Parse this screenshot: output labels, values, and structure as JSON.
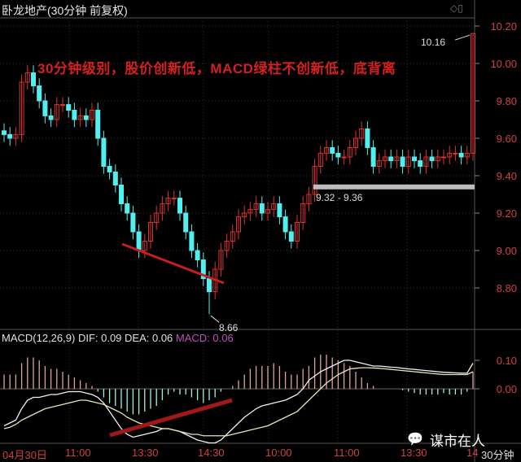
{
  "header": {
    "title": "卧龙地产(30分钟 前复权)",
    "window_buttons": "◇▯"
  },
  "annotation_text": "30分钟级别，股价创新低，MACD绿柱不创新低，底背离",
  "macd_label": {
    "params": "MACD(12,26,9)",
    "dif": "DIF: 0.09",
    "dea": "DEA: 0.06",
    "macd": "MACD: 0.06"
  },
  "watermark": "谋市在人",
  "period": "30分钟",
  "colors": {
    "up": "#e03030",
    "down": "#50f0f0",
    "annotation": "#d42020",
    "support_band": "#bdbdbd",
    "axis_text": "#d04040",
    "macd_value": "#c050c0"
  },
  "chart_data": [
    {
      "type": "candlestick",
      "price_ticks": [
        "10.20",
        "10.00",
        "9.80",
        "9.60",
        "9.40",
        "9.20",
        "9.00",
        "8.80"
      ],
      "ylim": [
        8.7,
        10.28
      ],
      "close": [
        9.62,
        9.6,
        9.62,
        9.9,
        9.95,
        9.88,
        9.8,
        9.72,
        9.7,
        9.78,
        9.78,
        9.75,
        9.7,
        9.72,
        9.7,
        9.75,
        9.6,
        9.45,
        9.42,
        9.35,
        9.25,
        9.2,
        9.1,
        9.0,
        9.05,
        9.15,
        9.2,
        9.25,
        9.28,
        9.28,
        9.2,
        9.1,
        9.0,
        8.95,
        8.85,
        8.78,
        8.9,
        9.0,
        9.05,
        9.1,
        9.18,
        9.2,
        9.22,
        9.25,
        9.2,
        9.22,
        9.25,
        9.18,
        9.1,
        9.05,
        9.15,
        9.25,
        9.3,
        9.45,
        9.52,
        9.55,
        9.52,
        9.5,
        9.5,
        9.55,
        9.6,
        9.65,
        9.55,
        9.45,
        9.48,
        9.5,
        9.48,
        9.5,
        9.45,
        9.5,
        9.48,
        9.45,
        9.5,
        9.48,
        9.5,
        9.5,
        9.52,
        9.52,
        9.5,
        9.52,
        10.16
      ],
      "annotations": {
        "low_label": "8.66",
        "low_value": 8.66,
        "low_index": 35,
        "high_label": "10.16",
        "high_value": 10.16,
        "high_index": 80,
        "band_label": "9.32 - 9.36",
        "band_value": 9.34
      }
    },
    {
      "type": "macd",
      "ticks": [
        "0.10",
        "0.00"
      ],
      "hist": [
        0.05,
        0.05,
        0.05,
        0.09,
        0.11,
        0.11,
        0.1,
        0.08,
        0.07,
        0.07,
        0.06,
        0.05,
        0.04,
        0.03,
        0.02,
        0.01,
        -0.01,
        -0.03,
        -0.05,
        -0.06,
        -0.07,
        -0.08,
        -0.09,
        -0.09,
        -0.08,
        -0.07,
        -0.06,
        -0.04,
        -0.02,
        -0.01,
        -0.02,
        -0.02,
        -0.03,
        -0.04,
        -0.05,
        -0.04,
        -0.03,
        -0.01,
        0,
        0.01,
        0.03,
        0.05,
        0.07,
        0.08,
        0.08,
        0.08,
        0.09,
        0.08,
        0.06,
        0.05,
        0.05,
        0.07,
        0.08,
        0.11,
        0.12,
        0.12,
        0.11,
        0.1,
        0.09,
        0.08,
        0.06,
        0.04,
        0.02,
        0.01,
        0,
        0,
        0,
        0,
        -0.005,
        -0.01,
        -0.015,
        -0.02,
        -0.02,
        -0.02,
        -0.02,
        -0.015,
        -0.02,
        -0.02,
        -0.02,
        -0.01,
        0.06
      ],
      "dif": [
        -0.13,
        -0.12,
        -0.11,
        -0.07,
        -0.04,
        -0.03,
        -0.03,
        -0.025,
        -0.02,
        -0.02,
        -0.015,
        -0.01,
        -0.01,
        -0.01,
        -0.015,
        -0.02,
        -0.03,
        -0.05,
        -0.08,
        -0.11,
        -0.14,
        -0.16,
        -0.17,
        -0.165,
        -0.16,
        -0.155,
        -0.15,
        -0.14,
        -0.14,
        -0.145,
        -0.15,
        -0.16,
        -0.17,
        -0.18,
        -0.185,
        -0.19,
        -0.19,
        -0.18,
        -0.16,
        -0.14,
        -0.12,
        -0.1,
        -0.085,
        -0.07,
        -0.06,
        -0.055,
        -0.05,
        -0.045,
        -0.04,
        -0.03,
        -0.02,
        0,
        0.03,
        0.045,
        0.06,
        0.07,
        0.08,
        0.09,
        0.1,
        0.1,
        0.095,
        0.09,
        0.085,
        0.08,
        0.08,
        0.078,
        0.076,
        0.075,
        0.072,
        0.07,
        0.068,
        0.066,
        0.064,
        0.062,
        0.06,
        0.058,
        0.057,
        0.056,
        0.055,
        0.055,
        0.09
      ],
      "dea": [
        -0.14,
        -0.135,
        -0.125,
        -0.11,
        -0.1,
        -0.09,
        -0.08,
        -0.07,
        -0.065,
        -0.06,
        -0.055,
        -0.05,
        -0.045,
        -0.04,
        -0.04,
        -0.045,
        -0.05,
        -0.055,
        -0.065,
        -0.075,
        -0.085,
        -0.1,
        -0.11,
        -0.12,
        -0.125,
        -0.13,
        -0.135,
        -0.14,
        -0.14,
        -0.145,
        -0.15,
        -0.155,
        -0.16,
        -0.16,
        -0.165,
        -0.165,
        -0.165,
        -0.165,
        -0.165,
        -0.16,
        -0.155,
        -0.15,
        -0.145,
        -0.14,
        -0.135,
        -0.13,
        -0.12,
        -0.11,
        -0.1,
        -0.09,
        -0.08,
        -0.06,
        -0.04,
        -0.02,
        0,
        0.02,
        0.035,
        0.05,
        0.06,
        0.07,
        0.072,
        0.074,
        0.074,
        0.073,
        0.072,
        0.07,
        0.068,
        0.066,
        0.064,
        0.062,
        0.06,
        0.058,
        0.056,
        0.054,
        0.052,
        0.05,
        0.05,
        0.05,
        0.05,
        0.05,
        0.06
      ]
    }
  ],
  "time_labels": [
    "04月30日",
    "11:00",
    "13:30",
    "14:30",
    "10:00",
    "11:00",
    "13:30",
    "14"
  ]
}
